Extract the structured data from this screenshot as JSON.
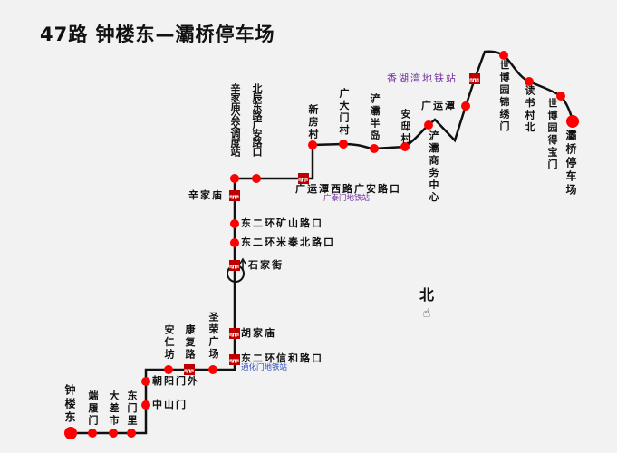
{
  "title": "47路  钟楼东—灞桥停车场",
  "colors": {
    "line": "#111111",
    "stop": "#ff0000",
    "subway": "#c00000",
    "subway_label_purple": "#7030a0",
    "subway_label_blue": "#3050c0"
  },
  "stations": [
    {
      "name": "钟楼东",
      "type": "terminal"
    },
    {
      "name": "端履门",
      "type": "stop"
    },
    {
      "name": "大差市",
      "type": "stop"
    },
    {
      "name": "东门里",
      "type": "stop"
    },
    {
      "name": "中山门",
      "type": "stop"
    },
    {
      "name": "朝阳门外",
      "type": "stop"
    },
    {
      "name": "安仁坊",
      "type": "stop"
    },
    {
      "name": "康复路",
      "type": "subway"
    },
    {
      "name": "圣荣广场",
      "type": "stop"
    },
    {
      "name": "东二环信和路口",
      "type": "subway",
      "metro": "通化门地铁站"
    },
    {
      "name": "胡家庙",
      "type": "subway"
    },
    {
      "name": "石家街",
      "type": "subway"
    },
    {
      "name": "东二环米秦北路口",
      "type": "stop"
    },
    {
      "name": "东二环矿山路口",
      "type": "stop"
    },
    {
      "name": "辛家庙",
      "type": "subway"
    },
    {
      "name": "辛家庙公交调度站",
      "type": "stop"
    },
    {
      "name": "北辰东路广安路口",
      "type": "stop"
    },
    {
      "name": "广运潭西路广安路口",
      "type": "subway",
      "metro": "广泰门地铁站"
    },
    {
      "name": "新房村",
      "type": "stop"
    },
    {
      "name": "广大门村",
      "type": "stop"
    },
    {
      "name": "浐灞半岛",
      "type": "stop"
    },
    {
      "name": "安邸村",
      "type": "stop"
    },
    {
      "name": "浐灞商务中心",
      "type": "stop"
    },
    {
      "name": "广运潭",
      "type": "stop"
    },
    {
      "name": "香湖湾地铁站",
      "type": "subway"
    },
    {
      "name": "世博园锦绣门",
      "type": "stop"
    },
    {
      "name": "读书村北",
      "type": "stop"
    },
    {
      "name": "世博园得宝门",
      "type": "stop"
    },
    {
      "name": "灞桥停车场",
      "type": "terminal"
    }
  ],
  "compass": {
    "label": "北",
    "icon": "pointing-hand-icon"
  }
}
